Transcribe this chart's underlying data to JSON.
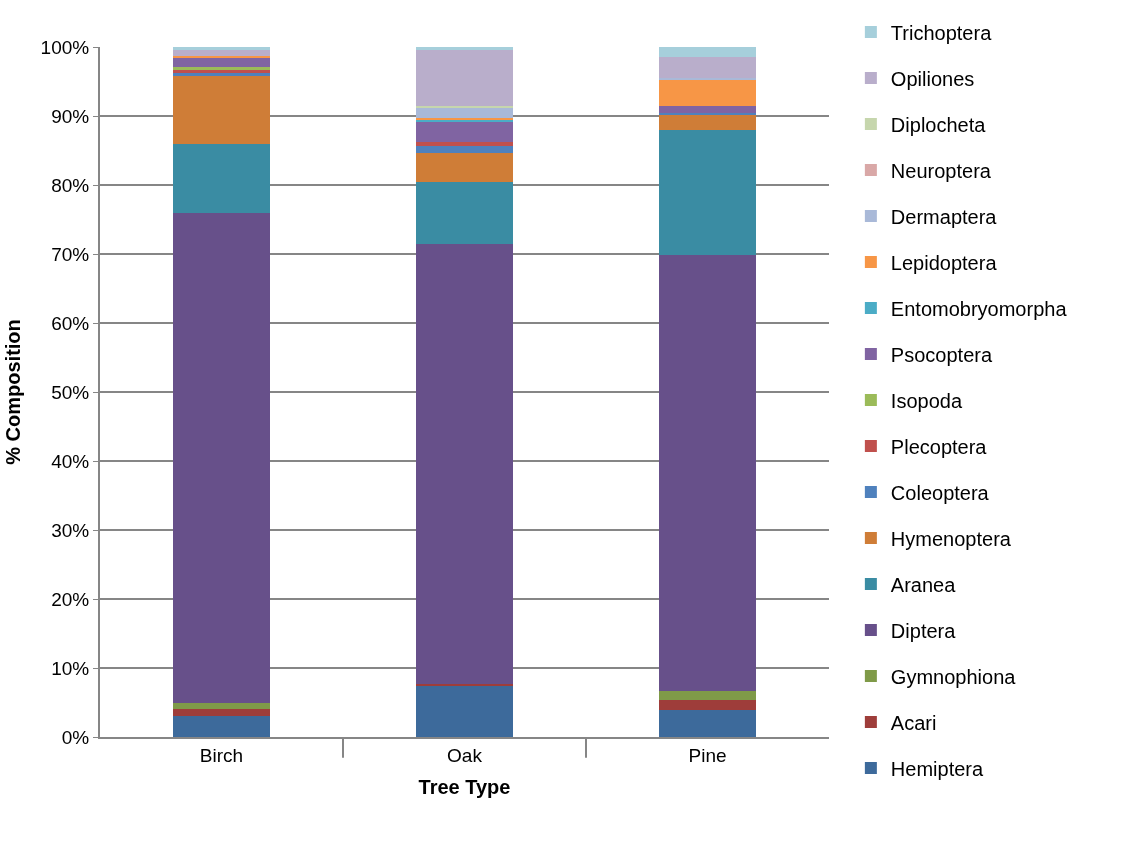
{
  "chart_data": {
    "type": "bar",
    "stacked": true,
    "xlabel": "Tree Type",
    "ylabel": "% Composition",
    "categories": [
      "Birch",
      "Oak",
      "Pine"
    ],
    "ylim": [
      0,
      100
    ],
    "yticks": [
      {
        "value": 0,
        "label": "0%"
      },
      {
        "value": 10,
        "label": "10%"
      },
      {
        "value": 20,
        "label": "20%"
      },
      {
        "value": 30,
        "label": "30%"
      },
      {
        "value": 40,
        "label": "40%"
      },
      {
        "value": 50,
        "label": "50%"
      },
      {
        "value": 60,
        "label": "60%"
      },
      {
        "value": 70,
        "label": "70%"
      },
      {
        "value": 80,
        "label": "80%"
      },
      {
        "value": 90,
        "label": "90%"
      },
      {
        "value": 100,
        "label": "100%"
      }
    ],
    "grid": "y",
    "legend": "right",
    "series": [
      {
        "name": "Hemiptera",
        "color": "#3d6a9b",
        "values": [
          3.1,
          7.4,
          3.9
        ]
      },
      {
        "name": "Acari",
        "color": "#9e3d3a",
        "values": [
          0.9,
          0.3,
          1.4
        ]
      },
      {
        "name": "Gymnophiona",
        "color": "#7f9a48",
        "values": [
          1.0,
          0,
          1.4
        ]
      },
      {
        "name": "Diptera",
        "color": "#67508a",
        "values": [
          71.0,
          63.8,
          63.1
        ]
      },
      {
        "name": "Aranea",
        "color": "#3a8ca3",
        "values": [
          10.0,
          9.0,
          18.1
        ]
      },
      {
        "name": "Hymenoptera",
        "color": "#cf7d37",
        "values": [
          9.8,
          4.1,
          2.3
        ]
      },
      {
        "name": "Coleoptera",
        "color": "#4f81bd",
        "values": [
          0.4,
          1.0,
          0.2
        ]
      },
      {
        "name": "Plecoptera",
        "color": "#c0504d",
        "values": [
          0.5,
          0.7,
          0
        ]
      },
      {
        "name": "Isopoda",
        "color": "#9bbb59",
        "values": [
          0.4,
          0,
          0
        ]
      },
      {
        "name": "Psocoptera",
        "color": "#8064a2",
        "values": [
          1.3,
          2.8,
          1.1
        ]
      },
      {
        "name": "Entomobryomorpha",
        "color": "#4bacc6",
        "values": [
          0,
          0.4,
          0
        ]
      },
      {
        "name": "Lepidoptera",
        "color": "#f79646",
        "values": [
          0.3,
          0.2,
          3.7
        ]
      },
      {
        "name": "Dermaptera",
        "color": "#a9b9d8",
        "values": [
          0,
          1.5,
          0.3
        ]
      },
      {
        "name": "Neuroptera",
        "color": "#d9a8a7",
        "values": [
          0,
          0,
          0
        ]
      },
      {
        "name": "Diplocheta",
        "color": "#c6d6ad",
        "values": [
          0,
          0.3,
          0
        ]
      },
      {
        "name": "Opiliones",
        "color": "#b9aecb",
        "values": [
          0.9,
          8.0,
          3.1
        ]
      },
      {
        "name": "Trichoptera",
        "color": "#a6cfdb",
        "values": [
          0.4,
          0.5,
          1.4
        ]
      }
    ]
  }
}
